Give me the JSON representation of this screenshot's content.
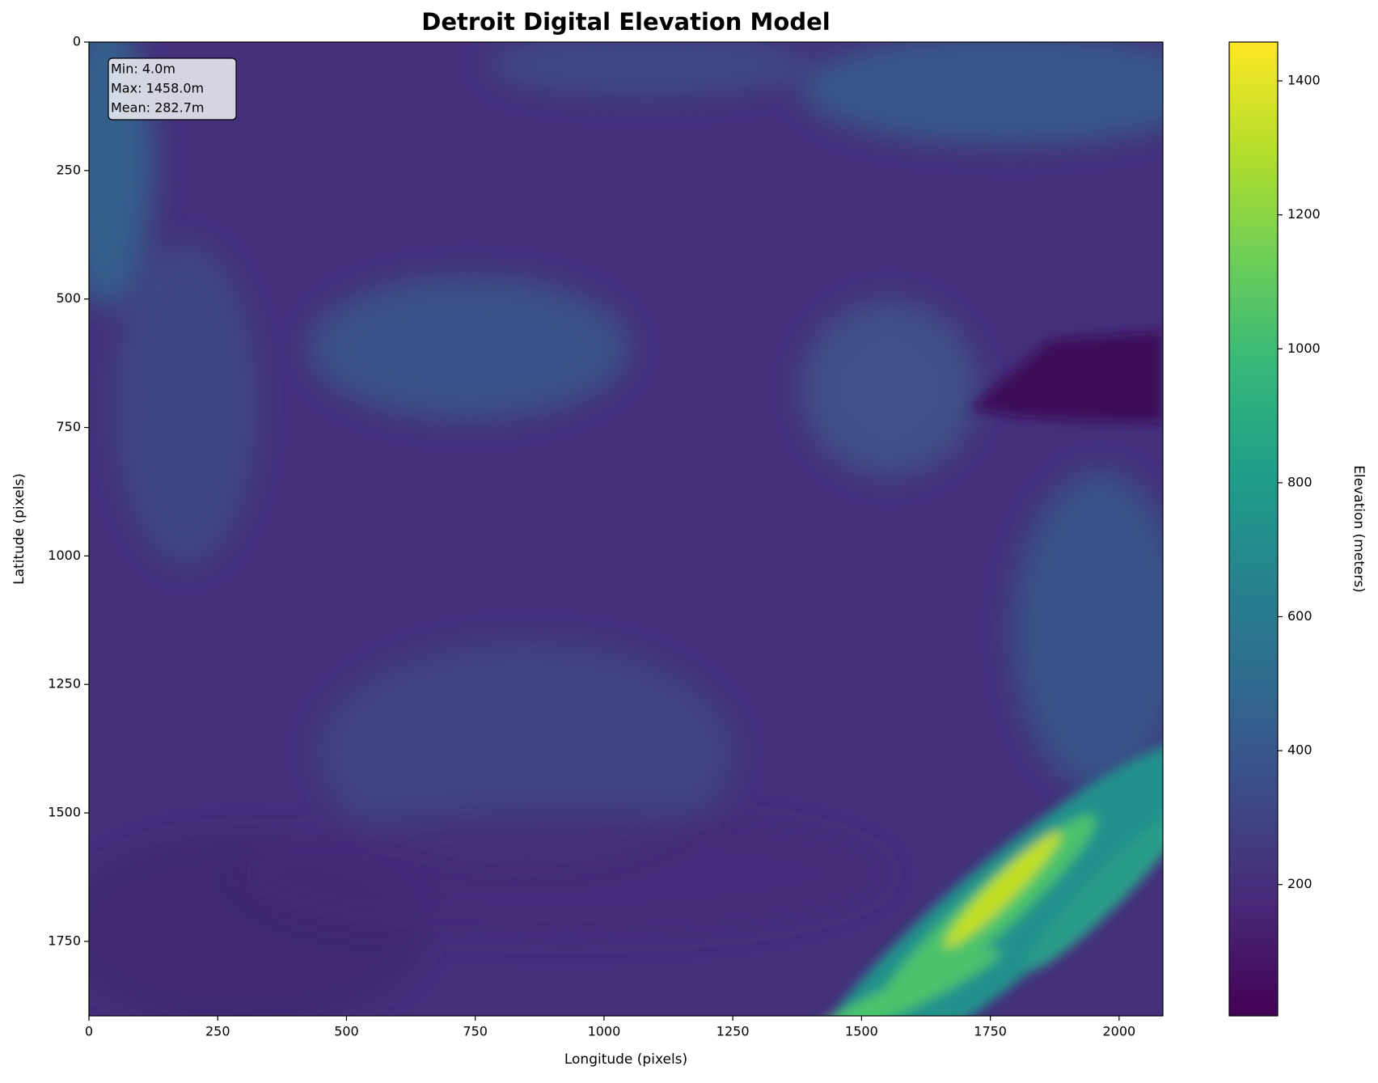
{
  "chart_data": {
    "type": "heatmap",
    "title": "Detroit Digital Elevation Model",
    "x_label": "Longitude (pixels)",
    "y_label": "Latitude (pixels)",
    "xlim": [
      0,
      2085
    ],
    "xticks": [
      0,
      250,
      500,
      750,
      1000,
      1250,
      1500,
      1750,
      2000
    ],
    "ylim": [
      1895,
      0
    ],
    "yticks": [
      0,
      250,
      500,
      750,
      1000,
      1250,
      1500,
      1750
    ],
    "annotations": [
      "Min: 4.0m",
      "Max: 1458.0m",
      "Mean: 282.7m"
    ],
    "colorbar": {
      "label": "Elevation (meters)",
      "lim": [
        4,
        1458
      ],
      "ticks": [
        200,
        400,
        600,
        800,
        1000,
        1200,
        1400
      ],
      "colormap": [
        "#440154",
        "#482878",
        "#3e4989",
        "#31688e",
        "#26828e",
        "#1f9e89",
        "#35b779",
        "#6ece58",
        "#b5de2b",
        "#fde725"
      ]
    }
  }
}
